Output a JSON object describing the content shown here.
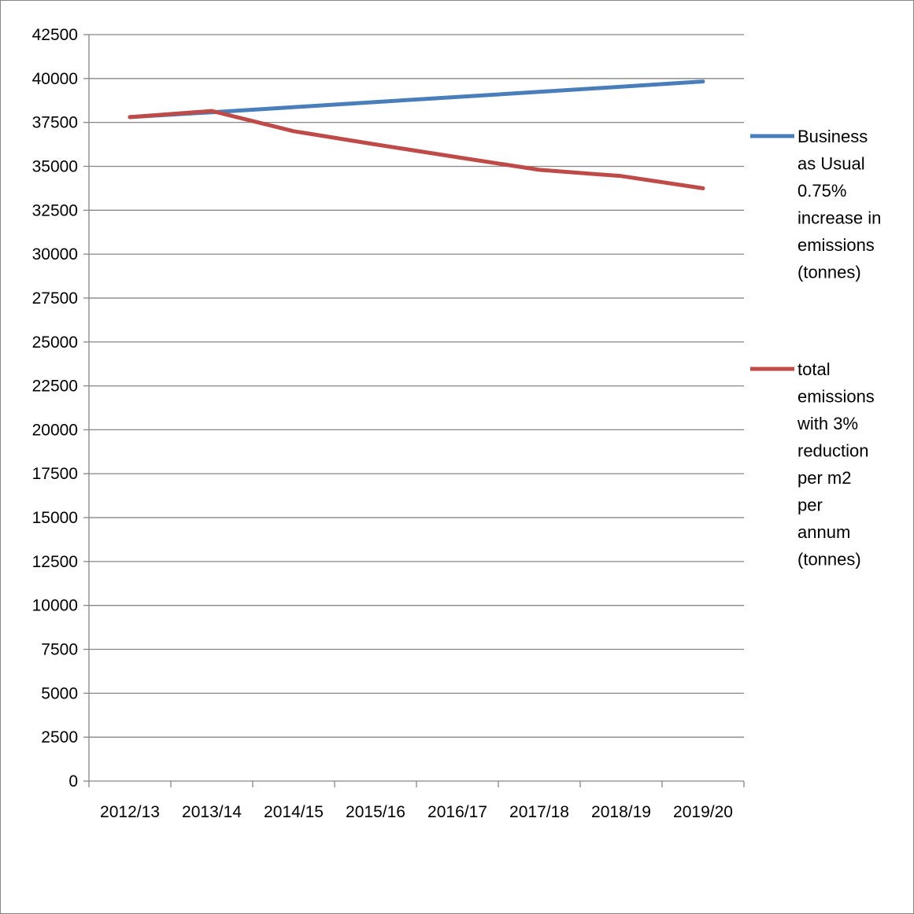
{
  "chart_data": {
    "type": "line",
    "title": "",
    "xlabel": "",
    "ylabel": "",
    "categories": [
      "2012/13",
      "2013/14",
      "2014/15",
      "2015/16",
      "2016/17",
      "2017/18",
      "2018/19",
      "2019/20"
    ],
    "ylim": [
      0,
      42500
    ],
    "y_ticks": [
      0,
      2500,
      5000,
      7500,
      10000,
      12500,
      15000,
      17500,
      20000,
      22500,
      25000,
      27500,
      30000,
      32500,
      35000,
      37500,
      40000,
      42500
    ],
    "grid": true,
    "legend_position": "right",
    "series": [
      {
        "name": "Business as Usual 0.75% increase in emissions (tonnes)",
        "legend_lines": [
          "Business",
          "as Usual",
          "0.75%",
          "increase in",
          "emissions",
          "(tonnes)"
        ],
        "color": "#4a7ebb",
        "values": [
          37800,
          38080,
          38370,
          38660,
          38950,
          39240,
          39530,
          39830
        ]
      },
      {
        "name": "total emissions with 3% reduction per m2 per annum (tonnes)",
        "legend_lines": [
          "total",
          "emissions",
          "with 3%",
          "reduction",
          "per m2",
          "per",
          "annum",
          "(tonnes)"
        ],
        "color": "#be4b48",
        "values": [
          37800,
          38150,
          37000,
          36250,
          35520,
          34800,
          34450,
          33750
        ]
      }
    ]
  }
}
